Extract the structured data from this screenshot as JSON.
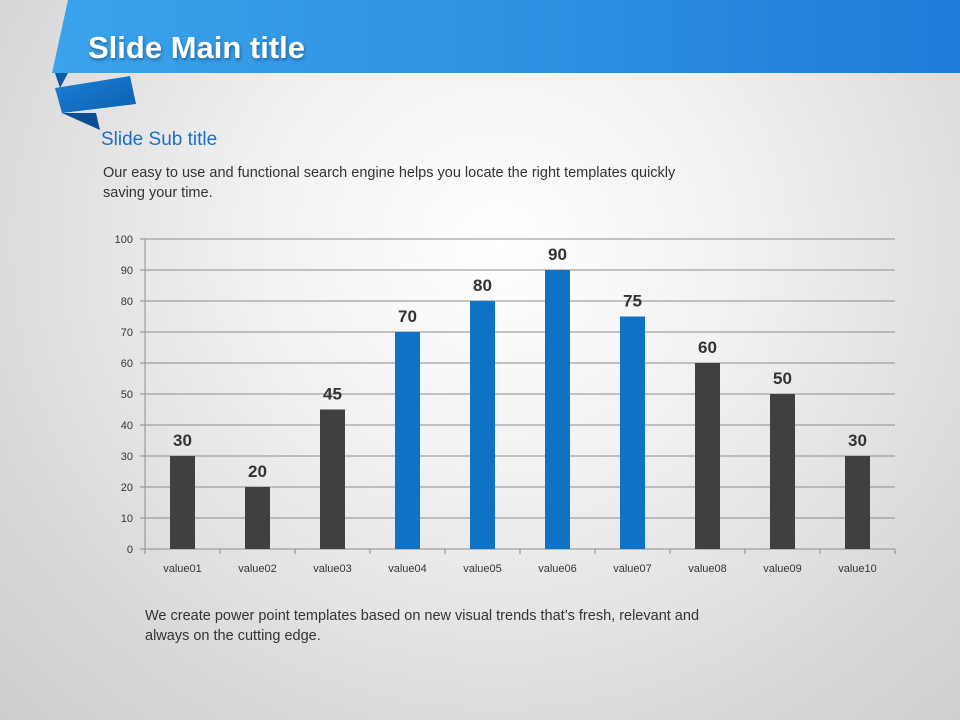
{
  "slide": {
    "title": "Slide Main title",
    "subtitle": "Slide Sub title",
    "intro": "Our easy to use and functional search engine helps you locate the right templates quickly saving your time.",
    "footer": "We create power point templates based on new visual trends that’s fresh, relevant and always on the cutting edge."
  },
  "colors": {
    "header_blue": "#2a8fe0",
    "bar_dark": "#404040",
    "bar_blue": "#0f72c6",
    "subtitle": "#1a6fc4"
  },
  "chart_data": {
    "type": "bar",
    "categories": [
      "value01",
      "value02",
      "value03",
      "value04",
      "value05",
      "value06",
      "value07",
      "value08",
      "value09",
      "value10"
    ],
    "values": [
      30,
      20,
      45,
      70,
      80,
      90,
      75,
      60,
      50,
      30
    ],
    "highlighted": [
      false,
      false,
      false,
      true,
      true,
      true,
      true,
      false,
      false,
      false
    ],
    "ylim": [
      0,
      100
    ],
    "yticks": [
      0,
      10,
      20,
      30,
      40,
      50,
      60,
      70,
      80,
      90,
      100
    ],
    "grid": true,
    "data_labels": true,
    "legend": "none"
  }
}
